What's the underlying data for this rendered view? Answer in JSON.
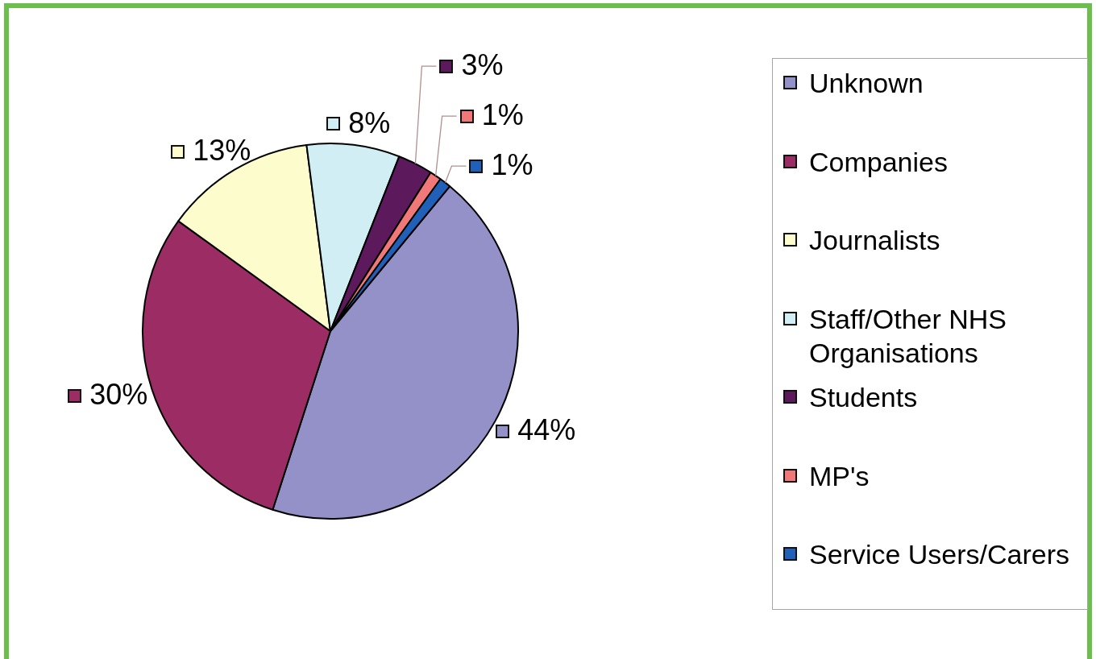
{
  "chart_data": {
    "type": "pie",
    "categories": [
      "Unknown",
      "Companies",
      "Journalists",
      "Staff/Other NHS Organisations",
      "Students",
      "MP's",
      "Service Users/Carers"
    ],
    "values": [
      44,
      30,
      13,
      8,
      3,
      1,
      1
    ],
    "colors": [
      "#9490c8",
      "#9c2d64",
      "#fcfccc",
      "#d0eef4",
      "#5c1a5c",
      "#f07878",
      "#2060b8"
    ],
    "value_labels": [
      "44%",
      "30%",
      "13%",
      "8%",
      "3%",
      "1%",
      "1%"
    ],
    "legend": "right"
  }
}
